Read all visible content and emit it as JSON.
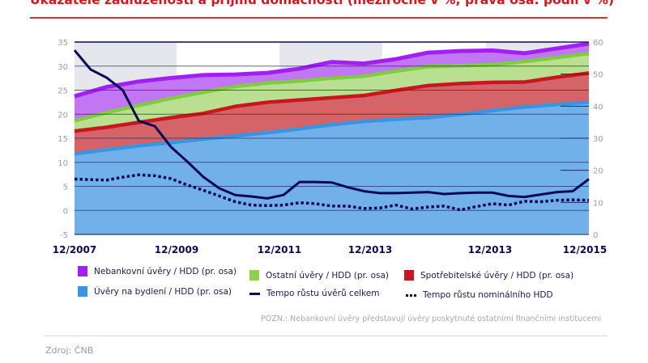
{
  "title": "Ukazatele zadluženosti a příjmu domácností (meziročně v %; pravá osa: podíl v %)",
  "note": "POZN.: Nebankovní úvěry představují úvěry poskytnuté ostatními finančními institucemi",
  "source": "Zdroj: ČNB",
  "colors": {
    "title": "#d8141c",
    "navy": "#0a0a50",
    "nonbank": "#a020f0",
    "other": "#80cc40",
    "consumer": "#c8161e",
    "housing": "#3a94e0"
  },
  "chart_data": {
    "type": "area+line",
    "left_axis": {
      "ylim": [
        -5,
        35
      ],
      "ticks": [
        "35",
        "30",
        "25",
        "20",
        "15",
        "10",
        "5",
        "0",
        "-5"
      ]
    },
    "right_axis": {
      "ylim": [
        0,
        60
      ],
      "ticks": [
        "60",
        "50",
        "40",
        "30",
        "20",
        "10",
        "0"
      ]
    },
    "x_tick_labels": [
      "12/2007",
      "12/2009",
      "12/2011",
      "12/2013",
      "12/2013",
      "12/2015"
    ],
    "x_range": [
      "12/2007",
      "12/2015"
    ],
    "grid": true,
    "legend_placement": "bottom",
    "stacked_areas_right_axis": {
      "x": [
        "12/2007",
        "6/2008",
        "12/2008",
        "6/2009",
        "12/2009",
        "6/2010",
        "12/2010",
        "6/2011",
        "12/2011",
        "6/2012",
        "12/2012",
        "6/2013",
        "12/2013",
        "6/2014",
        "12/2014",
        "6/2015",
        "12/2015"
      ],
      "series": [
        {
          "name": "Úvěry na bydlení / HDD (pr. osa)",
          "key": "housing",
          "values": [
            25.7,
            27,
            28.2,
            29.2,
            30.3,
            31.3,
            32.3,
            33.5,
            34.8,
            35.8,
            36.5,
            37,
            38,
            39.2,
            40.3,
            41.1,
            41.8
          ]
        },
        {
          "name": "Spotřebitelské úvěry / HDD (pr. osa)",
          "key": "consumer",
          "values": [
            7.1,
            7,
            7.3,
            7.8,
            8,
            9.2,
            9.5,
            9,
            8.4,
            8.1,
            9,
            10,
            9.6,
            8.8,
            7.8,
            8.5,
            9.1
          ]
        },
        {
          "name": "Ostatní úvěry / HDD (pr. osa)",
          "key": "other",
          "values": [
            3.2,
            4.6,
            5.3,
            6,
            6.6,
            6.2,
            6,
            5.9,
            6.1,
            6,
            6,
            5.9,
            5.6,
            5.5,
            6.4,
            6.1,
            6.1
          ]
        },
        {
          "name": "Nebankovní úvěry / HDD (pr. osa)",
          "key": "nonbank",
          "values": [
            7.6,
            7.9,
            7.4,
            6.3,
            5.3,
            3.7,
            3.1,
            3.8,
            5,
            3.9,
            3.7,
            4.3,
            4.5,
            4.4,
            2.5,
            2.8,
            3
          ]
        }
      ]
    },
    "lines_left_axis": {
      "x_frequency": "quarterly",
      "series": [
        {
          "name": "Tempo růstu úvěrů celkem",
          "style": "solid",
          "values": [
            33.3,
            29.3,
            27.6,
            25,
            18.6,
            17.5,
            13.2,
            10.2,
            7,
            4.6,
            3.2,
            2.9,
            2.5,
            3.2,
            5.9,
            5.9,
            5.8,
            4.8,
            4.0,
            3.6,
            3.6,
            3.7,
            3.8,
            3.4,
            3.6,
            3.7,
            3.7,
            3.0,
            2.8,
            3.3,
            3.8,
            4.0,
            6.5
          ]
        },
        {
          "name": "Tempo růstu nominálního HDD",
          "style": "dotted",
          "values": [
            6.5,
            6.4,
            6.3,
            6.9,
            7.4,
            7.2,
            6.6,
            5.3,
            4.2,
            3,
            1.8,
            1.1,
            1.0,
            1.1,
            1.6,
            1.4,
            0.9,
            0.9,
            0.4,
            0.5,
            1.1,
            0.3,
            0.7,
            0.9,
            0.1,
            0.8,
            1.4,
            1.1,
            1.9,
            1.8,
            2.1,
            2.2,
            2.1
          ]
        }
      ]
    }
  },
  "legend": [
    {
      "label": "Nebankovní úvěry / HDD (pr. osa)",
      "kind": "swatch",
      "key": "nonbank"
    },
    {
      "label": "Ostatní úvěry / HDD (pr. osa)",
      "kind": "swatch",
      "key": "other"
    },
    {
      "label": "Spotřebitelské úvěry / HDD (pr. osa)",
      "kind": "swatch",
      "key": "consumer"
    },
    {
      "label": "Úvěry na bydlení / HDD (pr. osa)",
      "kind": "swatch",
      "key": "housing"
    },
    {
      "label": "Tempo růstu úvěrů celkem",
      "kind": "line"
    },
    {
      "label": "Tempo růstu nominálního HDD",
      "kind": "dotted"
    }
  ]
}
